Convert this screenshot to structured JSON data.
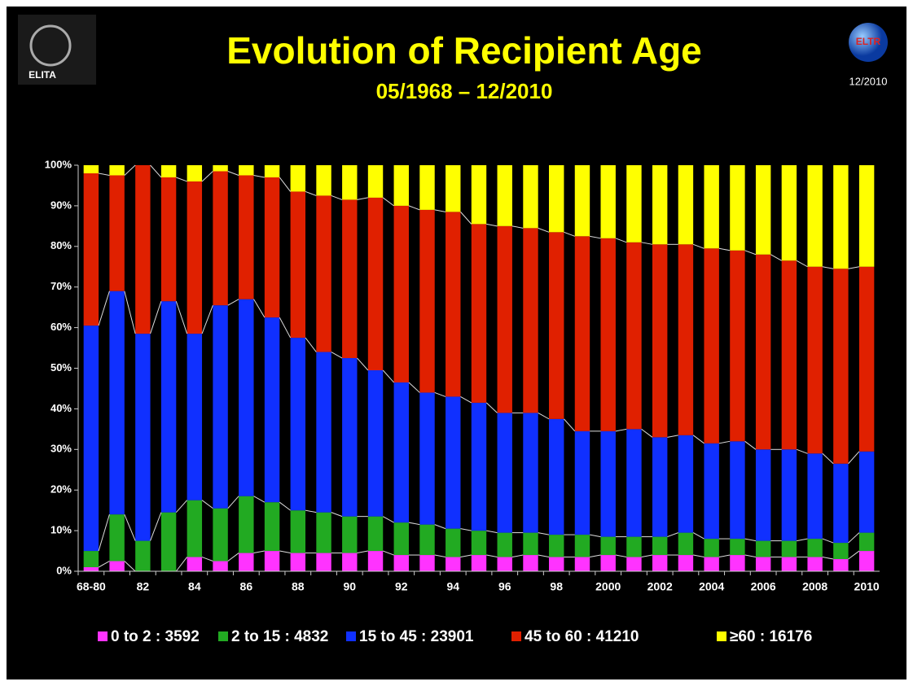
{
  "logos": {
    "left": "ELITA",
    "right": "ELTR",
    "date": "12/2010"
  },
  "chart_data": {
    "type": "stacked_bar",
    "title": "Evolution of Recipient Age",
    "subtitle": "05/1968 – 12/2010",
    "categories": [
      "68-80",
      null,
      "82",
      null,
      "84",
      null,
      "86",
      null,
      "88",
      null,
      "90",
      null,
      "92",
      null,
      "94",
      null,
      "96",
      null,
      "98",
      null,
      "2000",
      null,
      "2002",
      null,
      "2004",
      null,
      "2006",
      null,
      "2008",
      null,
      "2010"
    ],
    "series": [
      {
        "name": "0 to 2 : 3592",
        "color": "#ff33ff",
        "values": [
          1,
          2.5,
          0,
          0,
          3.5,
          2.5,
          4.5,
          5,
          4.5,
          4.5,
          4.5,
          5,
          4,
          4,
          3.5,
          4,
          3.5,
          4,
          3.5,
          3.5,
          4,
          3.5,
          4,
          4,
          3.5,
          4,
          3.5,
          3.5,
          3.5,
          3,
          5
        ]
      },
      {
        "name": "2 to 15 : 4832",
        "color": "#22aa22",
        "values": [
          4,
          11.5,
          7.5,
          14.5,
          14,
          13,
          14,
          12,
          10.5,
          10,
          9,
          8.5,
          8,
          7.5,
          7,
          6,
          6,
          5.5,
          5.5,
          5.5,
          4.5,
          5,
          4.5,
          5.5,
          4.5,
          4,
          4,
          4,
          4.5,
          4,
          4.5
        ]
      },
      {
        "name": "15 to 45 : 23901",
        "color": "#1030ff",
        "values": [
          55.5,
          55,
          51,
          52,
          41,
          50,
          48.5,
          45.5,
          42.5,
          39.5,
          39,
          36,
          34.5,
          32.5,
          32.5,
          31.5,
          29.5,
          29.5,
          28.5,
          25.5,
          26,
          26.5,
          24.5,
          24,
          23.5,
          24,
          22.5,
          22.5,
          21,
          19.5,
          20
        ]
      },
      {
        "name": "45 to 60 : 41210",
        "color": "#e02000",
        "values": [
          37.5,
          28.5,
          41.5,
          30.5,
          37.5,
          33,
          30.5,
          34.5,
          36,
          38.5,
          39,
          42.5,
          43.5,
          45,
          45.5,
          44,
          46,
          45.5,
          46,
          48,
          47.5,
          46,
          47.5,
          47,
          48,
          47,
          48,
          46.5,
          46,
          48,
          45.5
        ]
      },
      {
        "name": "≥60 : 16176",
        "color": "#ffff00",
        "values": [
          2,
          2.5,
          0,
          3,
          4,
          1.5,
          2.5,
          3,
          6.5,
          7.5,
          8.5,
          8,
          10,
          11,
          11.5,
          14.5,
          15,
          15.5,
          16.5,
          17.5,
          18,
          19,
          19.5,
          19.5,
          20.5,
          21,
          22,
          23.5,
          25,
          25.5,
          25
        ]
      }
    ],
    "ylim": [
      0,
      100
    ],
    "yticks": [
      {
        "value": 0,
        "label": "0%"
      },
      {
        "value": 10,
        "label": "10%"
      },
      {
        "value": 20,
        "label": "20%"
      },
      {
        "value": 30,
        "label": "30%"
      },
      {
        "value": 40,
        "label": "40%"
      },
      {
        "value": 50,
        "label": "50%"
      },
      {
        "value": 60,
        "label": "60%"
      },
      {
        "value": 70,
        "label": "70%"
      },
      {
        "value": 80,
        "label": "80%"
      },
      {
        "value": 90,
        "label": "90%"
      },
      {
        "value": 100,
        "label": "100%"
      }
    ],
    "grid": false
  }
}
